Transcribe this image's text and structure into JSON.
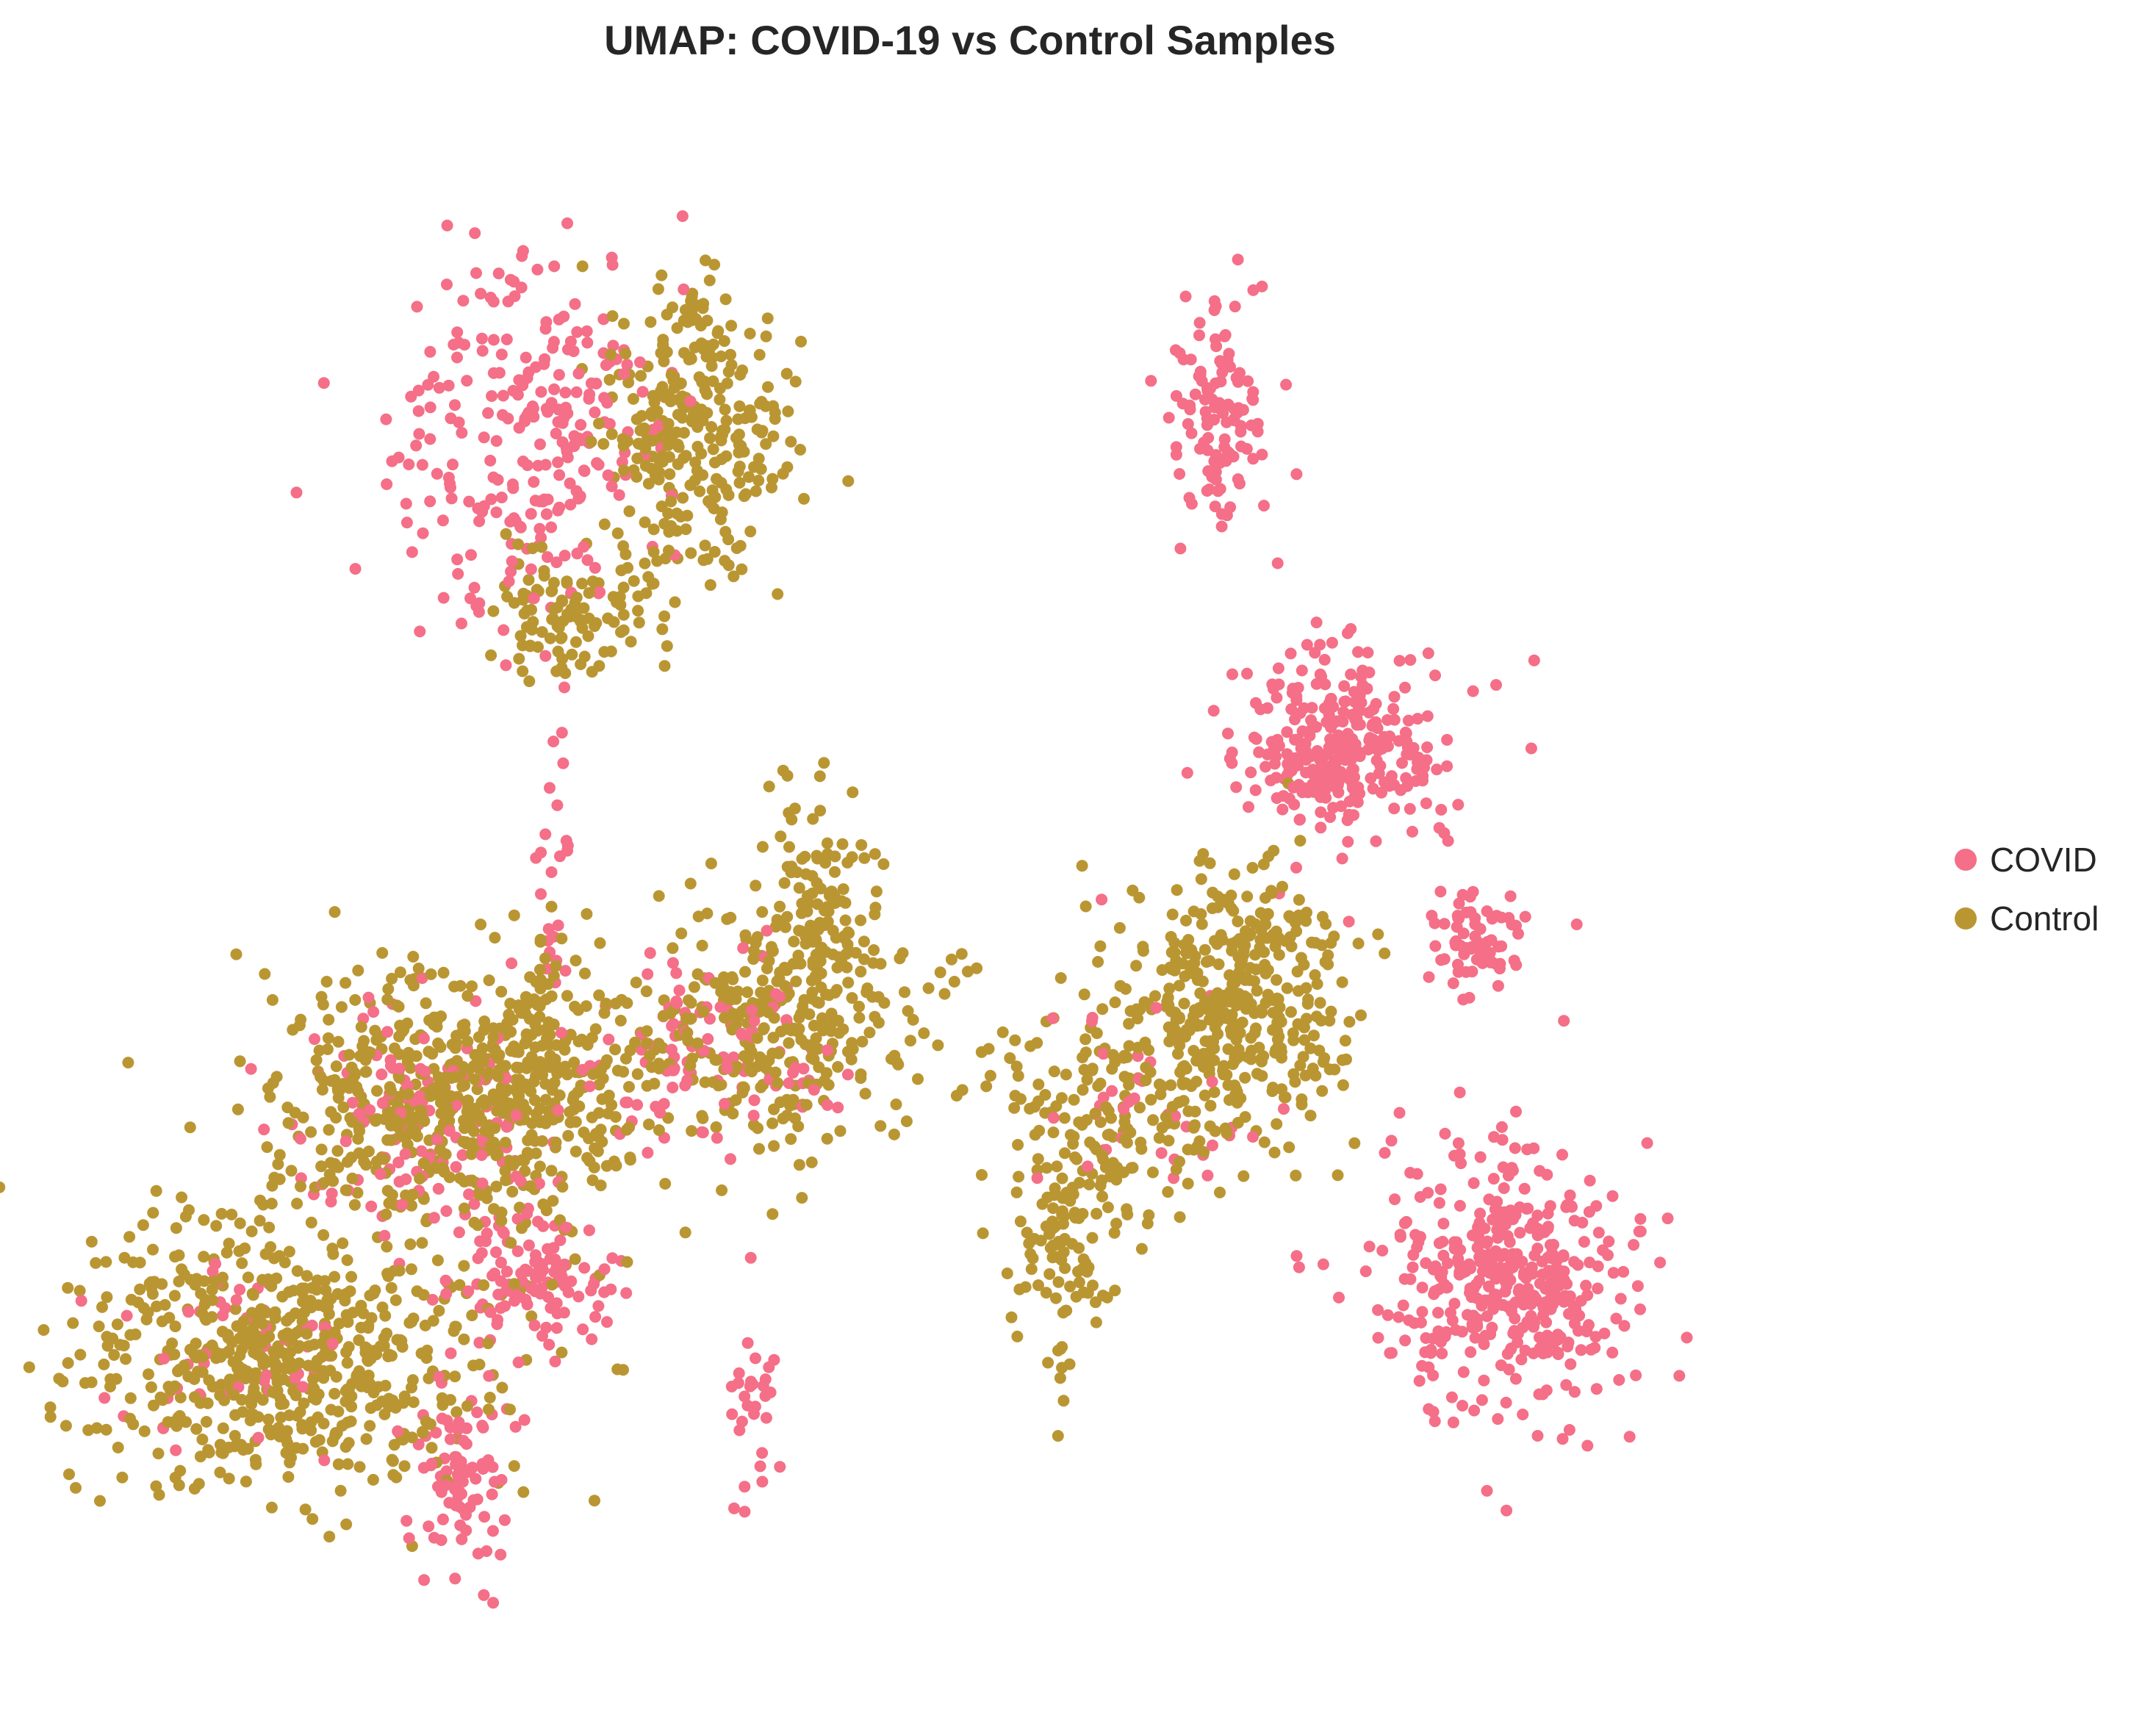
{
  "chart_data": {
    "type": "scatter",
    "title": "UMAP: COVID-19 vs Control Samples",
    "xlabel": "",
    "ylabel": "",
    "axes_visible": false,
    "grid": false,
    "legend_placement": "right",
    "xlim": [
      0,
      100
    ],
    "ylim": [
      0,
      100
    ],
    "series": [
      {
        "name": "COVID",
        "color": "#f46f87",
        "clusters": [
          {
            "cx": 24.5,
            "cy": 80.0,
            "sx": 3.8,
            "sy": 6.5,
            "n": 260
          },
          {
            "cx": 63.5,
            "cy": 82.0,
            "sx": 1.6,
            "sy": 3.8,
            "n": 120
          },
          {
            "cx": 70.5,
            "cy": 59.5,
            "sx": 3.2,
            "sy": 3.2,
            "n": 300
          },
          {
            "cx": 78.0,
            "cy": 46.5,
            "sx": 1.7,
            "sy": 1.6,
            "n": 70
          },
          {
            "cx": 80.0,
            "cy": 23.5,
            "sx": 3.6,
            "sy": 4.2,
            "n": 420
          },
          {
            "cx": 25.0,
            "cy": 24.0,
            "sx": 2.4,
            "sy": 2.6,
            "n": 120
          },
          {
            "cx": 20.5,
            "cy": 10.5,
            "sx": 1.5,
            "sy": 3.5,
            "n": 90
          },
          {
            "cx": 35.0,
            "cy": 39.0,
            "sx": 4.0,
            "sy": 3.2,
            "n": 110
          },
          {
            "cx": 18.0,
            "cy": 35.0,
            "sx": 4.0,
            "sy": 3.5,
            "n": 120
          },
          {
            "cx": 7.5,
            "cy": 19.0,
            "sx": 3.5,
            "sy": 3.0,
            "n": 50
          },
          {
            "cx": 60.0,
            "cy": 36.0,
            "sx": 3.0,
            "sy": 4.0,
            "n": 40
          },
          {
            "cx": 37.5,
            "cy": 16.0,
            "sx": 0.8,
            "sy": 3.5,
            "n": 30
          },
          {
            "cx": 26.0,
            "cy": 50.0,
            "sx": 0.5,
            "sy": 6.0,
            "n": 25
          }
        ]
      },
      {
        "name": "Control",
        "color": "#ba9633",
        "clusters": [
          {
            "cx": 34.0,
            "cy": 79.5,
            "sx": 2.6,
            "sy": 4.5,
            "n": 260
          },
          {
            "cx": 27.0,
            "cy": 68.0,
            "sx": 2.4,
            "sy": 2.0,
            "n": 110
          },
          {
            "cx": 34.0,
            "cy": 87.0,
            "sx": 0.9,
            "sy": 2.0,
            "n": 35
          },
          {
            "cx": 21.0,
            "cy": 36.0,
            "sx": 5.5,
            "sy": 4.0,
            "n": 650
          },
          {
            "cx": 38.5,
            "cy": 41.0,
            "sx": 4.0,
            "sy": 4.0,
            "n": 300
          },
          {
            "cx": 41.0,
            "cy": 48.5,
            "sx": 1.5,
            "sy": 4.0,
            "n": 110
          },
          {
            "cx": 10.5,
            "cy": 18.5,
            "sx": 6.0,
            "sy": 4.5,
            "n": 620
          },
          {
            "cx": 64.5,
            "cy": 42.5,
            "sx": 3.0,
            "sy": 4.5,
            "n": 380
          },
          {
            "cx": 57.0,
            "cy": 36.0,
            "sx": 3.5,
            "sy": 4.0,
            "n": 170
          },
          {
            "cx": 55.0,
            "cy": 26.5,
            "sx": 1.5,
            "sy": 3.5,
            "n": 110
          },
          {
            "cx": 25.5,
            "cy": 44.0,
            "sx": 0.6,
            "sy": 5.0,
            "n": 20
          }
        ]
      }
    ]
  }
}
